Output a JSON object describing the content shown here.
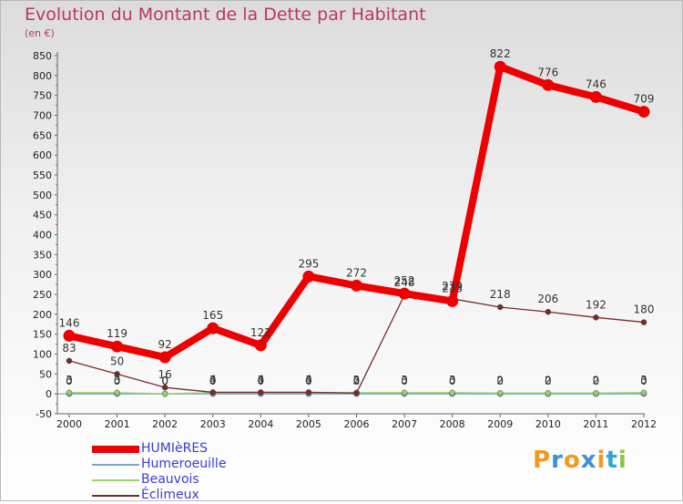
{
  "chart_data": {
    "type": "line",
    "title": "Evolution du Montant de la Dette par Habitant",
    "subtitle": "(en €)",
    "xlabel": "",
    "ylabel": "",
    "categories": [
      "2000",
      "2001",
      "2002",
      "2003",
      "2004",
      "2005",
      "2006",
      "2007",
      "2008",
      "2009",
      "2010",
      "2011",
      "2012"
    ],
    "ylim": [
      -50,
      850
    ],
    "yticks": [
      -50,
      0,
      50,
      100,
      150,
      200,
      250,
      300,
      350,
      400,
      450,
      500,
      550,
      600,
      650,
      700,
      750,
      800,
      850
    ],
    "grid": false,
    "legend_position": "bottom-left",
    "series": [
      {
        "name": "HUMIèRES",
        "color": "#ee0000",
        "values": [
          146,
          119,
          92,
          165,
          122,
          295,
          272,
          252,
          233,
          822,
          776,
          746,
          709
        ],
        "data_labels": [
          "146",
          "119",
          "92",
          "165",
          "122",
          "295",
          "272",
          "252",
          "233",
          "822",
          "776",
          "746",
          "709"
        ]
      },
      {
        "name": "Humeroeuille",
        "color": "#7ba6c9",
        "values": [
          0,
          0,
          0,
          0,
          0,
          0,
          0,
          0,
          0,
          0,
          0,
          0,
          0
        ],
        "data_labels": [
          "0",
          "0",
          "0",
          "0",
          "0",
          "0",
          "0",
          "0",
          "0",
          "0",
          "0",
          "0",
          "0"
        ]
      },
      {
        "name": "Beauvois",
        "color": "#9ad26a",
        "values": [
          3,
          3,
          0,
          3,
          3,
          3,
          3,
          3,
          3,
          2,
          2,
          2,
          3
        ],
        "data_labels": [
          "3",
          "3",
          "0",
          "3",
          "3",
          "3",
          "3",
          "3",
          "3",
          "2",
          "2",
          "2",
          "3"
        ]
      },
      {
        "name": "Éclimeux",
        "color": "#7a2a2a",
        "values": [
          83,
          50,
          16,
          4,
          4,
          4,
          2,
          248,
          239,
          218,
          206,
          192,
          180
        ],
        "data_labels": [
          "83",
          "50",
          "16",
          "4",
          "4",
          "4",
          "2",
          "248",
          "239",
          "218",
          "206",
          "192",
          "180"
        ]
      }
    ]
  },
  "logo": {
    "text": "Proxiti",
    "letters": [
      "P",
      "r",
      "o",
      "x",
      "i",
      "t",
      "i"
    ],
    "colors": [
      "#f39a1e",
      "#3f8fd6",
      "#f39a1e",
      "#3f8fd6",
      "#f39a1e",
      "#2aa9d8",
      "#8cc63f"
    ]
  }
}
